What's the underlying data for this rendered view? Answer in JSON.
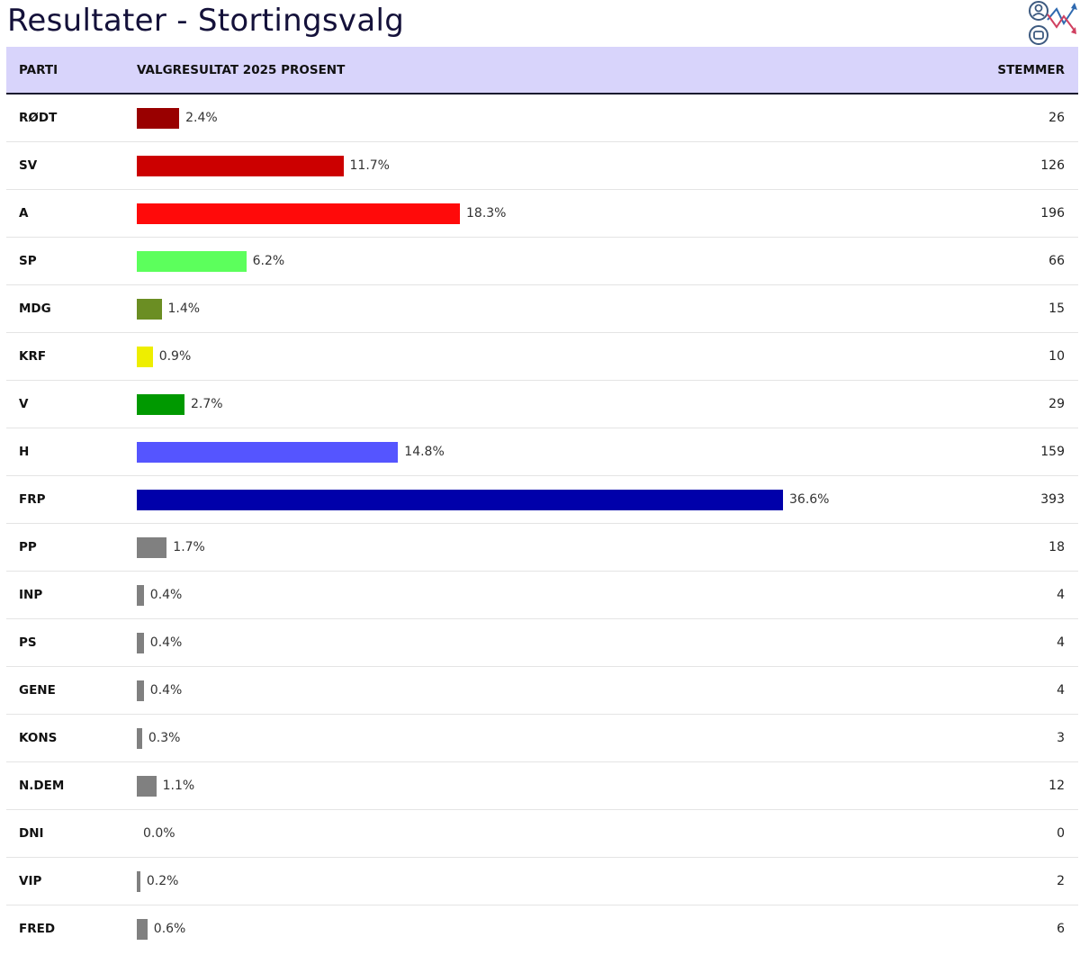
{
  "page": {
    "title": "Resultater - Stortingsvalg"
  },
  "table": {
    "headers": {
      "party": "PARTI",
      "result": "VALGRESULTAT 2025 PROSENT",
      "votes": "STEMMER"
    }
  },
  "chart_data": {
    "type": "bar",
    "orientation": "horizontal",
    "title": "Resultater - Stortingsvalg",
    "xlabel": "VALGRESULTAT 2025 PROSENT",
    "categories": [
      "RØDT",
      "SV",
      "A",
      "SP",
      "MDG",
      "KRF",
      "V",
      "H",
      "FRP",
      "PP",
      "INP",
      "PS",
      "GENE",
      "KONS",
      "N.DEM",
      "DNI",
      "VIP",
      "FRED"
    ],
    "values": [
      2.4,
      11.7,
      18.3,
      6.2,
      1.4,
      0.9,
      2.7,
      14.8,
      36.6,
      1.7,
      0.4,
      0.4,
      0.4,
      0.3,
      1.1,
      0.0,
      0.2,
      0.6
    ],
    "labels": [
      "2.4%",
      "11.7%",
      "18.3%",
      "6.2%",
      "1.4%",
      "0.9%",
      "2.7%",
      "14.8%",
      "36.6%",
      "1.7%",
      "0.4%",
      "0.4%",
      "0.4%",
      "0.3%",
      "1.1%",
      "0.0%",
      "0.2%",
      "0.6%"
    ],
    "votes": [
      "26",
      "126",
      "196",
      "66",
      "15",
      "10",
      "29",
      "159",
      "393",
      "18",
      "4",
      "4",
      "4",
      "3",
      "12",
      "0",
      "2",
      "6"
    ],
    "colors": [
      "#990000",
      "#cc0000",
      "#ff0a0a",
      "#5cff5c",
      "#6b8e23",
      "#eeee00",
      "#009900",
      "#5555ff",
      "#0000aa",
      "#808080",
      "#808080",
      "#808080",
      "#808080",
      "#808080",
      "#808080",
      "#808080",
      "#808080",
      "#808080"
    ],
    "xlim": [
      0,
      36.6
    ],
    "grid": false,
    "legend": "none"
  }
}
